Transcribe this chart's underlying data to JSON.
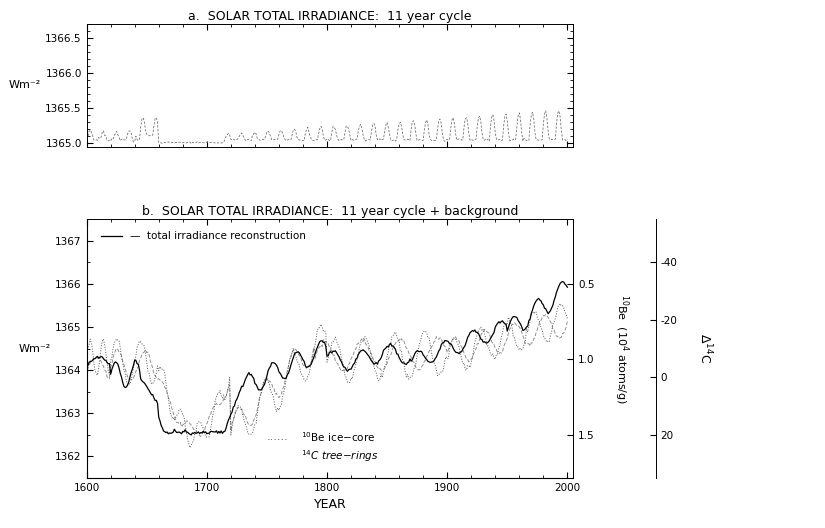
{
  "title_a": "a.  SOLAR TOTAL IRRADIANCE:  11 year cycle",
  "title_b": "b.  SOLAR TOTAL IRRADIANCE:  11 year cycle + background",
  "xlabel": "YEAR",
  "ylabel_a": "Wm⁻²",
  "ylabel_b": "Wm⁻²",
  "ylabel_be10": "¹⁰Be  (10⁴ atoms/g)",
  "ylabel_d14c": "Δ¹⁴C",
  "xlim": [
    1600,
    2005
  ],
  "ylim_a": [
    1364.95,
    1366.7
  ],
  "ylim_b": [
    1361.5,
    1367.5
  ],
  "yticks_a": [
    1365.0,
    1365.5,
    1366.0,
    1366.5
  ],
  "yticks_b": [
    1362,
    1363,
    1364,
    1365,
    1366,
    1367
  ],
  "xticks": [
    1600,
    1700,
    1800,
    1900,
    2000
  ],
  "be10_ticks": [
    0.5,
    1.0,
    1.5
  ],
  "d14c_ticks": [
    -40,
    -20,
    0,
    20
  ],
  "legend_line1": "     total irradiance reconstruction",
  "legend_line2": "....... ¹⁰Be ice-core",
  "legend_line3": "¹⁴C tree-rings"
}
